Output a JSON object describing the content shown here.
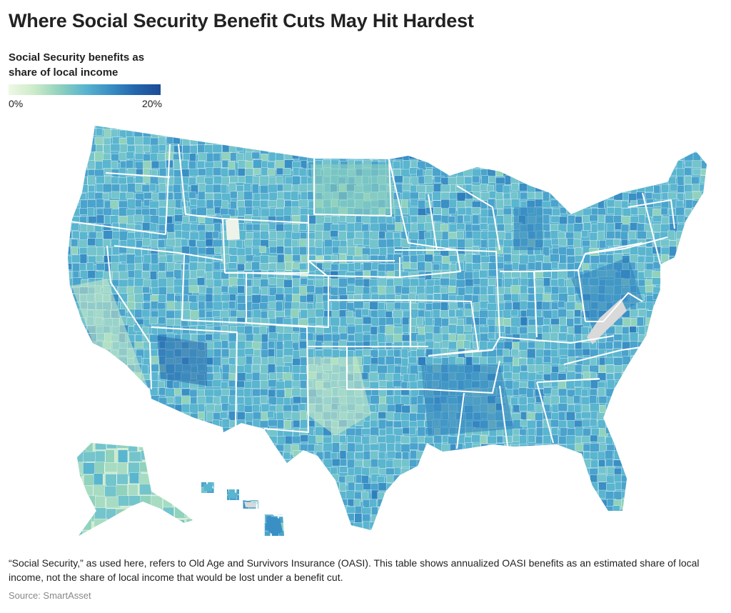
{
  "title": "Where Social Security Benefit Cuts May Hit Hardest",
  "legend": {
    "title_line1": "Social Security benefits as",
    "title_line2": "share of local income",
    "min_label": "0%",
    "max_label": "20%",
    "min_value": 0,
    "max_value": 20,
    "low_color": "#edf8e4",
    "mid_color": "#5ab5cf",
    "high_color": "#1d4c94",
    "no_data_color": "#d9d9d9"
  },
  "map": {
    "subject": "Counties of the United States",
    "border_color": "#ffffff"
  },
  "note": "“Social Security,” as used here, refers to Old Age and Survivors Insurance (OASI). This table shows annualized OASI benefits as an estimated share of local income, not the share of local income that would be lost under a benefit cut.",
  "source": "Source: SmartAsset"
}
